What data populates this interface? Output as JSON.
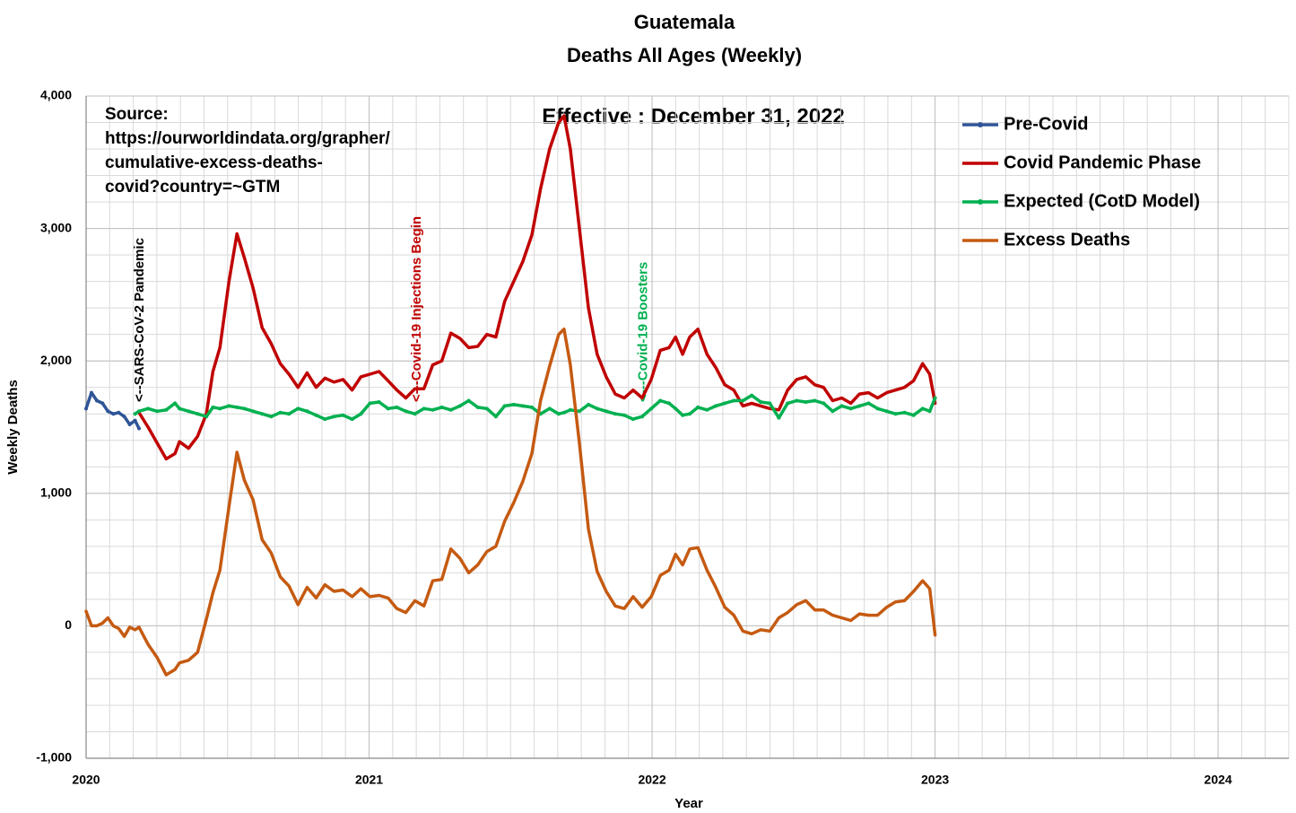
{
  "chart_data": {
    "type": "line",
    "title": "Guatemala",
    "subtitle": "Deaths All Ages (Weekly)",
    "x_label": "Year",
    "y_label": "Weekly Deaths",
    "source": [
      "Source:",
      "https://ourworldindata.org/grapher/",
      "cumulative-excess-deaths-",
      "covid?country=~GTM"
    ],
    "effective": "Effective : December 31, 2022",
    "annotations": [
      {
        "text": "<--SARS-CoV-2 Pandemic",
        "x": 2020.19,
        "color": "#000000"
      },
      {
        "text": "<---Covid-19 Injections Begin",
        "x": 2021.17,
        "color": "#c00000"
      },
      {
        "text": "<---Covid-19 Boosters",
        "x": 2021.97,
        "color": "#00b050"
      }
    ],
    "xlim": [
      2020,
      2024.25
    ],
    "xticks": [
      2020,
      2021,
      2022,
      2023,
      2024
    ],
    "ylim": [
      -1000,
      4000
    ],
    "yticks": [
      {
        "value": -1000,
        "label": "-1,000"
      },
      0,
      {
        "value": 1000,
        "label": "1,000"
      },
      {
        "value": 2000,
        "label": "2,000"
      },
      {
        "value": 3000,
        "label": "3,000"
      },
      {
        "value": 4000,
        "label": "4,000"
      }
    ],
    "grid": true,
    "minor_grid": {
      "x_step": 0.08333,
      "y_step": 200
    },
    "legend": "right",
    "x": [
      2020.0,
      2020.019,
      2020.038,
      2020.058,
      2020.077,
      2020.096,
      2020.115,
      2020.135,
      2020.154,
      2020.173,
      2020.187,
      2020.219,
      2020.251,
      2020.283,
      2020.314,
      2020.33,
      2020.362,
      2020.394,
      2020.425,
      2020.448,
      2020.473,
      2020.505,
      2020.533,
      2020.559,
      2020.59,
      2020.622,
      2020.654,
      2020.686,
      2020.717,
      2020.749,
      2020.781,
      2020.813,
      2020.844,
      2020.876,
      2020.908,
      2020.94,
      2020.971,
      2021.003,
      2021.035,
      2021.067,
      2021.098,
      2021.13,
      2021.162,
      2021.194,
      2021.225,
      2021.257,
      2021.289,
      2021.321,
      2021.352,
      2021.384,
      2021.416,
      2021.448,
      2021.479,
      2021.511,
      2021.543,
      2021.575,
      2021.606,
      2021.638,
      2021.67,
      2021.689,
      2021.711,
      2021.743,
      2021.775,
      2021.806,
      2021.838,
      2021.87,
      2021.902,
      2021.933,
      2021.965,
      2021.997,
      2022.029,
      2022.06,
      2022.083,
      2022.108,
      2022.133,
      2022.162,
      2022.194,
      2022.225,
      2022.257,
      2022.289,
      2022.321,
      2022.352,
      2022.384,
      2022.416,
      2022.448,
      2022.479,
      2022.511,
      2022.543,
      2022.575,
      2022.606,
      2022.638,
      2022.67,
      2022.702,
      2022.733,
      2022.765,
      2022.797,
      2022.829,
      2022.86,
      2022.892,
      2022.924,
      2022.956,
      2022.981,
      2023.0
    ],
    "series": [
      {
        "name": "Pre-Covid",
        "color": "#2f5597",
        "markers": true,
        "values": [
          1640,
          1760,
          1700,
          1680,
          1620,
          1600,
          1610,
          1580,
          1520,
          1550,
          1490,
          null,
          null,
          null,
          null,
          null,
          null,
          null,
          null,
          null,
          null,
          null,
          null,
          null,
          null,
          null,
          null,
          null,
          null,
          null,
          null,
          null,
          null,
          null,
          null,
          null,
          null,
          null,
          null,
          null,
          null,
          null,
          null,
          null,
          null,
          null,
          null,
          null,
          null,
          null,
          null,
          null,
          null,
          null,
          null,
          null,
          null,
          null,
          null,
          null,
          null,
          null,
          null,
          null,
          null,
          null,
          null,
          null,
          null,
          null,
          null,
          null,
          null,
          null,
          null,
          null,
          null,
          null,
          null,
          null,
          null,
          null,
          null,
          null,
          null,
          null,
          null,
          null,
          null,
          null,
          null,
          null,
          null,
          null,
          null,
          null,
          null,
          null,
          null,
          null,
          null,
          null,
          null
        ]
      },
      {
        "name": "Covid Pandemic Phase",
        "color": "#c00000",
        "markers": false,
        "values": [
          null,
          null,
          null,
          null,
          null,
          null,
          null,
          null,
          null,
          null,
          1610,
          1500,
          1380,
          1260,
          1300,
          1390,
          1340,
          1430,
          1600,
          1920,
          2100,
          2600,
          2960,
          2780,
          2550,
          2250,
          2130,
          1980,
          1900,
          1800,
          1910,
          1800,
          1870,
          1840,
          1860,
          1780,
          1880,
          1900,
          1920,
          1850,
          1780,
          1720,
          1790,
          1790,
          1970,
          2000,
          2210,
          2170,
          2100,
          2110,
          2200,
          2180,
          2450,
          2600,
          2750,
          2950,
          3300,
          3600,
          3800,
          3850,
          3600,
          3000,
          2400,
          2050,
          1880,
          1750,
          1720,
          1780,
          1720,
          1860,
          2080,
          2100,
          2180,
          2050,
          2180,
          2240,
          2050,
          1950,
          1820,
          1780,
          1660,
          1680,
          1660,
          1640,
          1630,
          1780,
          1860,
          1880,
          1820,
          1800,
          1700,
          1720,
          1680,
          1750,
          1760,
          1720,
          1760,
          1780,
          1800,
          1850,
          1980,
          1900,
          1680
        ]
      },
      {
        "name": "Expected (CotD Model)",
        "color": "#00b050",
        "markers": true,
        "values": [
          null,
          null,
          null,
          null,
          null,
          null,
          null,
          null,
          null,
          1600,
          1620,
          1640,
          1620,
          1630,
          1680,
          1640,
          1620,
          1600,
          1580,
          1650,
          1640,
          1660,
          1650,
          1640,
          1620,
          1600,
          1580,
          1610,
          1600,
          1640,
          1620,
          1590,
          1560,
          1580,
          1590,
          1560,
          1600,
          1680,
          1690,
          1640,
          1650,
          1620,
          1600,
          1640,
          1630,
          1650,
          1630,
          1660,
          1700,
          1650,
          1640,
          1580,
          1660,
          1670,
          1660,
          1650,
          1600,
          1640,
          1600,
          1610,
          1630,
          1620,
          1670,
          1640,
          1620,
          1600,
          1590,
          1560,
          1580,
          1640,
          1700,
          1680,
          1640,
          1590,
          1600,
          1650,
          1630,
          1660,
          1680,
          1700,
          1700,
          1740,
          1690,
          1680,
          1570,
          1680,
          1700,
          1690,
          1700,
          1680,
          1620,
          1660,
          1640,
          1660,
          1680,
          1640,
          1620,
          1600,
          1610,
          1590,
          1640,
          1620,
          1720
        ]
      },
      {
        "name": "Excess Deaths",
        "color": "#c55a11",
        "markers": false,
        "values": [
          110,
          0,
          0,
          20,
          60,
          0,
          -20,
          -80,
          -10,
          -30,
          -10,
          -140,
          -240,
          -370,
          -330,
          -280,
          -260,
          -200,
          50,
          250,
          420,
          900,
          1310,
          1100,
          950,
          650,
          550,
          370,
          300,
          160,
          290,
          210,
          310,
          260,
          270,
          220,
          280,
          220,
          230,
          210,
          130,
          100,
          190,
          150,
          340,
          350,
          580,
          510,
          400,
          460,
          560,
          600,
          790,
          930,
          1090,
          1300,
          1700,
          1960,
          2200,
          2240,
          1970,
          1380,
          730,
          410,
          260,
          150,
          130,
          220,
          140,
          220,
          380,
          420,
          540,
          460,
          580,
          590,
          420,
          290,
          140,
          80,
          -40,
          -60,
          -30,
          -40,
          60,
          100,
          160,
          190,
          120,
          120,
          80,
          60,
          40,
          90,
          80,
          80,
          140,
          180,
          190,
          260,
          340,
          280,
          -70
        ]
      }
    ]
  }
}
